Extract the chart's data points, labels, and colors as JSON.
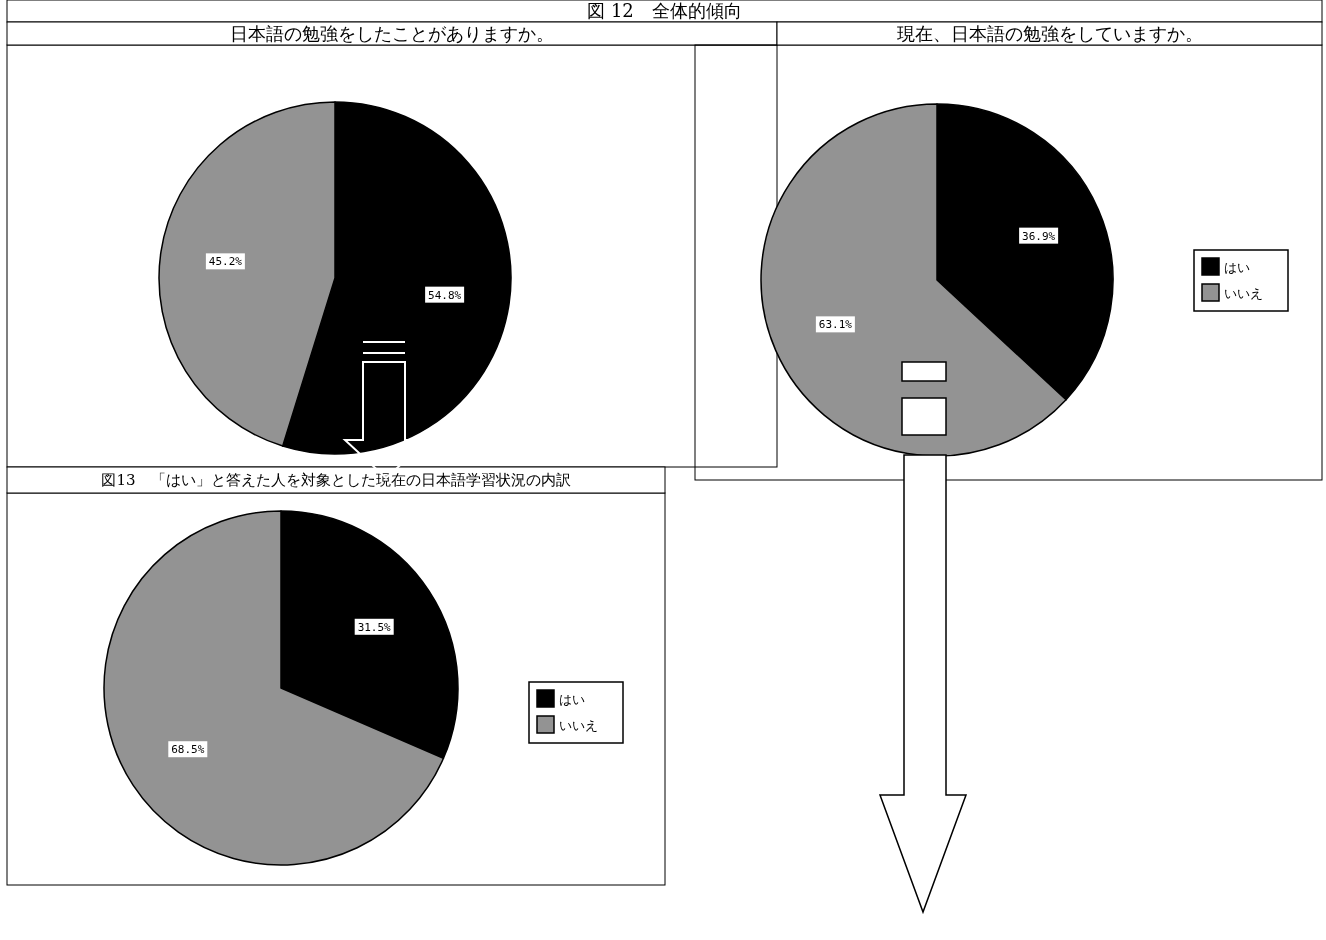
{
  "chart_data": [
    {
      "type": "pie",
      "title": "図 12　全体的傾向",
      "subtitle": "日本語の勉強をしたことがありますか。",
      "categories": [
        null,
        null
      ],
      "values": [
        54.8,
        45.2
      ],
      "value_labels": [
        "54.8%",
        "45.2%"
      ],
      "colors": [
        "#000000",
        "#939393"
      ]
    },
    {
      "type": "pie",
      "subtitle": "現在、日本語の勉強をしていますか。",
      "categories": [
        "はい",
        "いいえ"
      ],
      "values": [
        36.9,
        63.1
      ],
      "value_labels": [
        "36.9%",
        "63.1%"
      ],
      "colors": [
        "#000000",
        "#939393"
      ],
      "legend": "right"
    },
    {
      "type": "pie",
      "title": "図13　「はい」と答えた人を対象とした現在の日本語学習状況の内訳",
      "categories": [
        "はい",
        "いいえ"
      ],
      "values": [
        31.5,
        68.5
      ],
      "value_labels": [
        "31.5%",
        "68.5%"
      ],
      "colors": [
        "#000000",
        "#939393"
      ],
      "legend": "right"
    }
  ]
}
